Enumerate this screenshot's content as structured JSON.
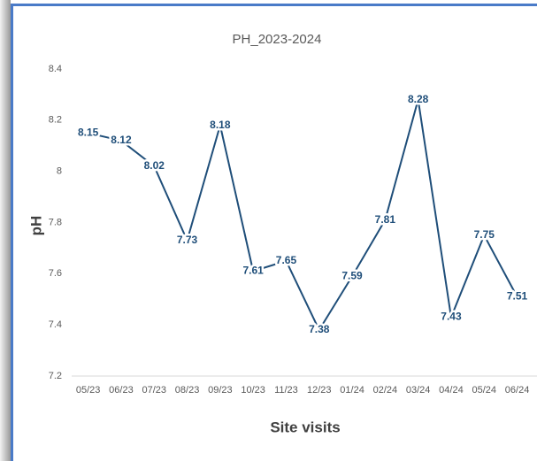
{
  "chart_data": {
    "type": "line",
    "title": "PH_2023-2024",
    "xlabel": "Site visits",
    "ylabel": "pH",
    "categories": [
      "05/23",
      "06/23",
      "07/23",
      "08/23",
      "09/23",
      "10/23",
      "11/23",
      "12/23",
      "01/24",
      "02/24",
      "03/24",
      "04/24",
      "05/24",
      "06/24"
    ],
    "series": [
      {
        "name": "pH",
        "color": "#1f4e79",
        "values": [
          8.15,
          8.12,
          8.02,
          7.73,
          8.18,
          7.61,
          7.65,
          7.38,
          7.59,
          7.81,
          8.28,
          7.43,
          7.75,
          7.51
        ]
      }
    ],
    "ylim": [
      7.2,
      8.4
    ],
    "yticks": [
      7.2,
      7.4,
      7.6,
      7.8,
      8,
      8.2,
      8.4
    ],
    "grid": false
  }
}
